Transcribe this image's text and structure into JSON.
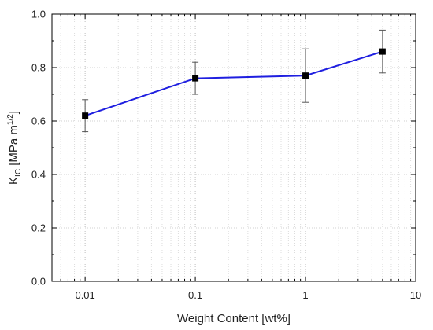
{
  "chart_data": {
    "type": "line",
    "title": "",
    "xlabel": "Weight Content [wt%]",
    "ylabel": {
      "base": "K",
      "sub": "IC",
      "unit_prefix": " [MPa m",
      "sup": "1/2",
      "unit_suffix": "]"
    },
    "xscale": "log",
    "xlim": [
      0.005,
      10
    ],
    "ylim": [
      0.0,
      1.0
    ],
    "xticks": [
      {
        "value": 0.01,
        "label": "0.01"
      },
      {
        "value": 0.1,
        "label": "0.1"
      },
      {
        "value": 1,
        "label": "1"
      },
      {
        "value": 10,
        "label": "10"
      }
    ],
    "yticks": [
      {
        "value": 0.0,
        "label": "0.0"
      },
      {
        "value": 0.2,
        "label": "0.2"
      },
      {
        "value": 0.4,
        "label": "0.4"
      },
      {
        "value": 0.6,
        "label": "0.6"
      },
      {
        "value": 0.8,
        "label": "0.8"
      },
      {
        "value": 1.0,
        "label": "1.0"
      }
    ],
    "grid": true,
    "series": [
      {
        "x": [
          0.01,
          0.1,
          1,
          5
        ],
        "y": [
          0.62,
          0.76,
          0.77,
          0.86
        ],
        "yerr": [
          0.06,
          0.06,
          0.1,
          0.08
        ],
        "line_color": "#1f1fe0",
        "marker": "square",
        "marker_color": "#000000"
      }
    ]
  }
}
